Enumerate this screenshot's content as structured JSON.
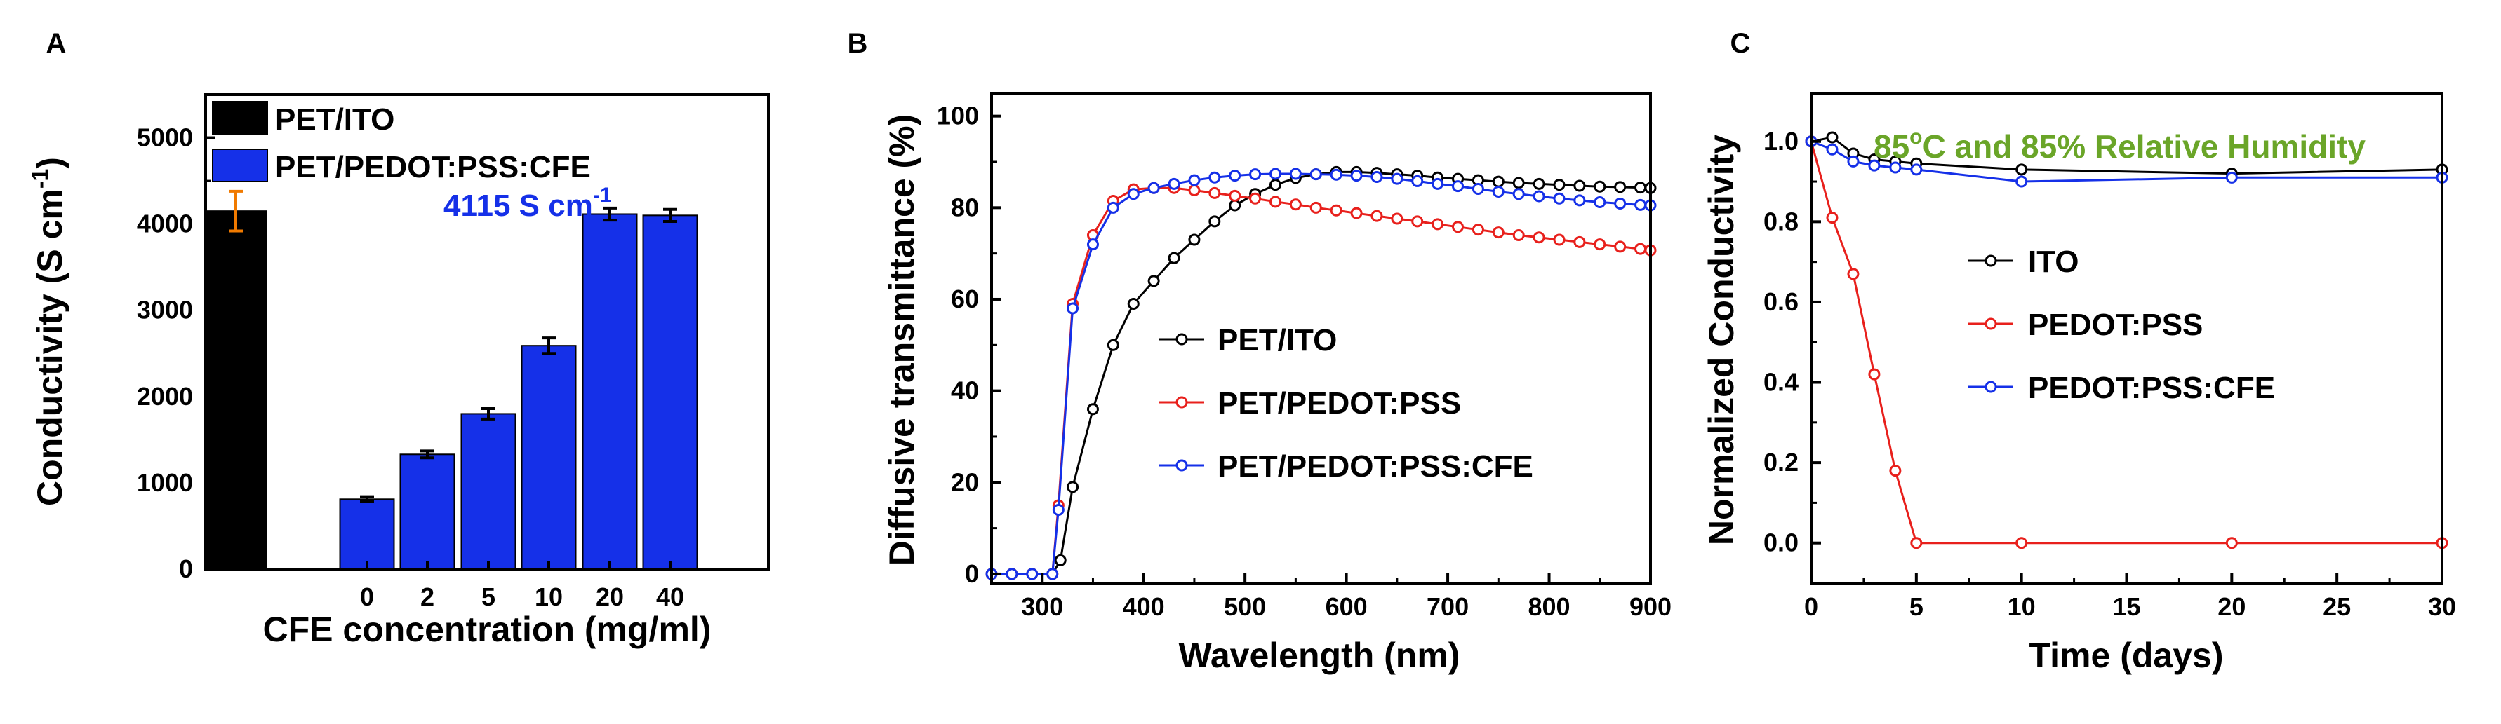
{
  "panel_labels": [
    "A",
    "B",
    "C"
  ],
  "chart_data": [
    {
      "type": "bar",
      "title": "",
      "xlabel": "CFE concentration (mg/ml)",
      "ylabel": "Conductivity (S cm",
      "ylabel_sup": "-1",
      "ylabel_close": ")",
      "ylim": [
        0,
        5500
      ],
      "yticks": [
        0,
        1000,
        2000,
        3000,
        4000,
        5000
      ],
      "categories": [
        "",
        "0",
        "2",
        "5",
        "10",
        "20",
        "40"
      ],
      "series": [
        {
          "name": "PET/ITO",
          "color": "#000000",
          "values": [
            4150,
            null,
            null,
            null,
            null,
            null,
            null
          ],
          "errors": [
            230,
            null,
            null,
            null,
            null,
            null,
            null
          ],
          "error_color": "#f07a00"
        },
        {
          "name": "PET/PEDOT:PSS:CFE",
          "color": "#1530e8",
          "values": [
            null,
            810,
            1330,
            1800,
            2590,
            4115,
            4100
          ],
          "errors": [
            null,
            30,
            40,
            60,
            90,
            70,
            70
          ],
          "error_color": "#000000"
        }
      ],
      "annotation": {
        "text": "4115 S cm",
        "sup": "-1",
        "color": "#1530e8"
      }
    },
    {
      "type": "line",
      "title": "",
      "xlabel": "Wavelength (nm)",
      "ylabel": "Diffusive transmittance (%)",
      "xlim": [
        250,
        900
      ],
      "ylim": [
        -2,
        105
      ],
      "xticks": [
        300,
        400,
        500,
        600,
        700,
        800,
        900
      ],
      "yticks": [
        0,
        20,
        40,
        60,
        80,
        100
      ],
      "series": [
        {
          "name": "PET/ITO",
          "color": "#000000",
          "x": [
            250,
            270,
            290,
            310,
            318,
            330,
            350,
            370,
            390,
            410,
            430,
            450,
            470,
            490,
            510,
            530,
            550,
            570,
            590,
            610,
            630,
            650,
            670,
            690,
            710,
            730,
            750,
            770,
            790,
            810,
            830,
            850,
            870,
            890,
            900
          ],
          "y": [
            0,
            0,
            0,
            0,
            3,
            19,
            36,
            50,
            59,
            64,
            69,
            73,
            77,
            80.5,
            83,
            85,
            86.5,
            87.3,
            87.8,
            87.8,
            87.6,
            87.3,
            87.0,
            86.6,
            86.3,
            86.0,
            85.7,
            85.4,
            85.2,
            85.0,
            84.8,
            84.6,
            84.5,
            84.4,
            84.3
          ]
        },
        {
          "name": "PET/PEDOT:PSS",
          "color": "#e8201c",
          "x": [
            250,
            270,
            290,
            310,
            316,
            330,
            350,
            370,
            390,
            410,
            430,
            450,
            470,
            490,
            510,
            530,
            550,
            570,
            590,
            610,
            630,
            650,
            670,
            690,
            710,
            730,
            750,
            770,
            790,
            810,
            830,
            850,
            870,
            890,
            900
          ],
          "y": [
            0,
            0,
            0,
            0,
            15,
            59,
            74,
            81.5,
            84,
            84.3,
            84.3,
            83.8,
            83.2,
            82.6,
            82.0,
            81.3,
            80.7,
            80.0,
            79.4,
            78.8,
            78.2,
            77.6,
            77.0,
            76.4,
            75.8,
            75.2,
            74.6,
            74.0,
            73.5,
            73.0,
            72.5,
            72.0,
            71.5,
            71.0,
            70.7
          ]
        },
        {
          "name": "PET/PEDOT:PSS:CFE",
          "color": "#1530e8",
          "x": [
            250,
            270,
            290,
            310,
            316,
            330,
            350,
            370,
            390,
            410,
            430,
            450,
            470,
            490,
            510,
            530,
            550,
            570,
            590,
            610,
            630,
            650,
            670,
            690,
            710,
            730,
            750,
            770,
            790,
            810,
            830,
            850,
            870,
            890,
            900
          ],
          "y": [
            0,
            0,
            0,
            0,
            14,
            58,
            72,
            80,
            83,
            84.3,
            85.2,
            86,
            86.6,
            87,
            87.3,
            87.4,
            87.4,
            87.3,
            87.2,
            87.0,
            86.7,
            86.3,
            85.8,
            85.2,
            84.7,
            84.1,
            83.5,
            83.0,
            82.5,
            82.0,
            81.6,
            81.2,
            80.9,
            80.6,
            80.5
          ]
        }
      ],
      "legend_position": "center-right"
    },
    {
      "type": "line",
      "title": "",
      "xlabel": "Time (days)",
      "ylabel": "Normalized Conductivity",
      "xlim": [
        0,
        30
      ],
      "ylim": [
        -0.1,
        1.12
      ],
      "xticks": [
        0,
        5,
        10,
        15,
        20,
        25,
        30
      ],
      "yticks": [
        0.0,
        0.2,
        0.4,
        0.6,
        0.8,
        1.0
      ],
      "series": [
        {
          "name": "ITO",
          "color": "#000000",
          "x": [
            0,
            1,
            2,
            3,
            4,
            5,
            10,
            20,
            30
          ],
          "y": [
            1.0,
            1.01,
            0.97,
            0.955,
            0.95,
            0.945,
            0.93,
            0.92,
            0.93
          ]
        },
        {
          "name": "PEDOT:PSS",
          "color": "#e8201c",
          "x": [
            0,
            1,
            2,
            3,
            4,
            5,
            10,
            20,
            30
          ],
          "y": [
            1.0,
            0.81,
            0.67,
            0.42,
            0.18,
            0.0,
            0.0,
            0.0,
            0.0
          ]
        },
        {
          "name": "PEDOT:PSS:CFE",
          "color": "#1530e8",
          "x": [
            0,
            1,
            2,
            3,
            4,
            5,
            10,
            20,
            30
          ],
          "y": [
            1.0,
            0.98,
            0.95,
            0.94,
            0.935,
            0.93,
            0.9,
            0.91,
            0.91
          ]
        }
      ],
      "legend_position": "center",
      "annotation": {
        "text_pre": "85",
        "sup": "o",
        "text_post": "C and 85% Relative Humidity",
        "color": "#6aa528"
      }
    }
  ]
}
